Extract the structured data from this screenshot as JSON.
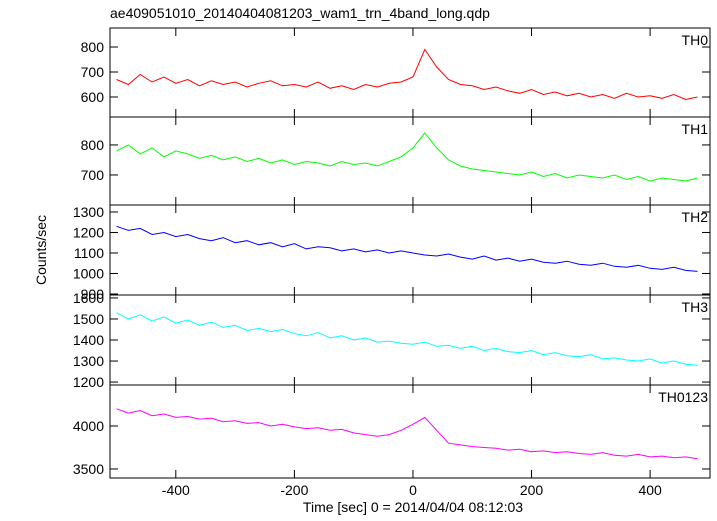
{
  "chart_data": {
    "type": "line",
    "title": "ae409051010_20140404081203_wam1_trn_4band_long.qdp",
    "x_label": "Time [sec] 0 = 2014/04/04 08:12:03",
    "y_label": "Counts/sec",
    "xlim": [
      -511,
      501
    ],
    "xticks": [
      -400,
      -200,
      0,
      200,
      400
    ],
    "x": [
      -500,
      -480,
      -460,
      -440,
      -420,
      -400,
      -380,
      -360,
      -340,
      -320,
      -300,
      -280,
      -260,
      -240,
      -220,
      -200,
      -180,
      -160,
      -140,
      -120,
      -100,
      -80,
      -60,
      -40,
      -20,
      0,
      20,
      40,
      60,
      80,
      100,
      120,
      140,
      160,
      180,
      200,
      220,
      240,
      260,
      280,
      300,
      320,
      340,
      360,
      380,
      400,
      420,
      440,
      460,
      480
    ],
    "panels": [
      {
        "name": "TH0",
        "color": "#ff0000",
        "ylim": [
          520,
          876
        ],
        "yticks": [
          600,
          700,
          800
        ],
        "values": [
          670,
          650,
          690,
          660,
          680,
          655,
          670,
          645,
          665,
          650,
          660,
          640,
          655,
          665,
          645,
          650,
          640,
          660,
          635,
          645,
          630,
          650,
          640,
          655,
          660,
          680,
          790,
          720,
          670,
          650,
          645,
          630,
          640,
          625,
          615,
          630,
          610,
          620,
          605,
          615,
          600,
          610,
          595,
          615,
          600,
          605,
          595,
          610,
          590,
          600
        ]
      },
      {
        "name": "TH1",
        "color": "#00ff00",
        "ylim": [
          600,
          893
        ],
        "yticks": [
          700,
          800
        ],
        "values": [
          780,
          800,
          770,
          790,
          760,
          780,
          770,
          755,
          765,
          750,
          760,
          745,
          755,
          740,
          750,
          735,
          745,
          740,
          730,
          745,
          735,
          740,
          730,
          745,
          760,
          790,
          840,
          790,
          750,
          730,
          720,
          715,
          710,
          705,
          700,
          710,
          695,
          705,
          690,
          700,
          695,
          690,
          700,
          685,
          695,
          680,
          690,
          685,
          680,
          690
        ]
      },
      {
        "name": "TH2",
        "color": "#0000ff",
        "ylim": [
          895,
          1334
        ],
        "yticks": [
          900,
          1000,
          1100,
          1200,
          1300
        ],
        "values": [
          1230,
          1210,
          1220,
          1190,
          1200,
          1180,
          1190,
          1170,
          1160,
          1175,
          1150,
          1160,
          1140,
          1150,
          1130,
          1145,
          1120,
          1130,
          1125,
          1110,
          1120,
          1105,
          1115,
          1100,
          1110,
          1100,
          1090,
          1085,
          1095,
          1080,
          1070,
          1085,
          1065,
          1075,
          1060,
          1070,
          1055,
          1050,
          1060,
          1045,
          1040,
          1050,
          1035,
          1030,
          1040,
          1025,
          1020,
          1030,
          1015,
          1010
        ]
      },
      {
        "name": "TH3",
        "color": "#00ffff",
        "ylim": [
          1186,
          1614
        ],
        "yticks": [
          1200,
          1300,
          1400,
          1500,
          1600
        ],
        "values": [
          1530,
          1500,
          1520,
          1490,
          1510,
          1480,
          1495,
          1470,
          1485,
          1460,
          1470,
          1445,
          1455,
          1440,
          1450,
          1430,
          1420,
          1435,
          1410,
          1420,
          1400,
          1410,
          1390,
          1395,
          1385,
          1380,
          1390,
          1370,
          1375,
          1360,
          1370,
          1350,
          1360,
          1345,
          1340,
          1350,
          1330,
          1340,
          1325,
          1320,
          1330,
          1310,
          1315,
          1305,
          1300,
          1310,
          1290,
          1300,
          1285,
          1280
        ]
      },
      {
        "name": "TH0123",
        "color": "#ff00ff",
        "ylim": [
          3395,
          4477
        ],
        "yticks": [
          3500,
          4000
        ],
        "values": [
          4200,
          4150,
          4180,
          4120,
          4140,
          4100,
          4110,
          4080,
          4090,
          4050,
          4060,
          4030,
          4040,
          4000,
          4020,
          3990,
          3970,
          3980,
          3950,
          3960,
          3920,
          3900,
          3880,
          3900,
          3950,
          4020,
          4100,
          3950,
          3800,
          3780,
          3760,
          3750,
          3740,
          3720,
          3730,
          3700,
          3710,
          3690,
          3700,
          3680,
          3670,
          3690,
          3660,
          3650,
          3670,
          3640,
          3650,
          3630,
          3640,
          3620
        ]
      }
    ]
  }
}
